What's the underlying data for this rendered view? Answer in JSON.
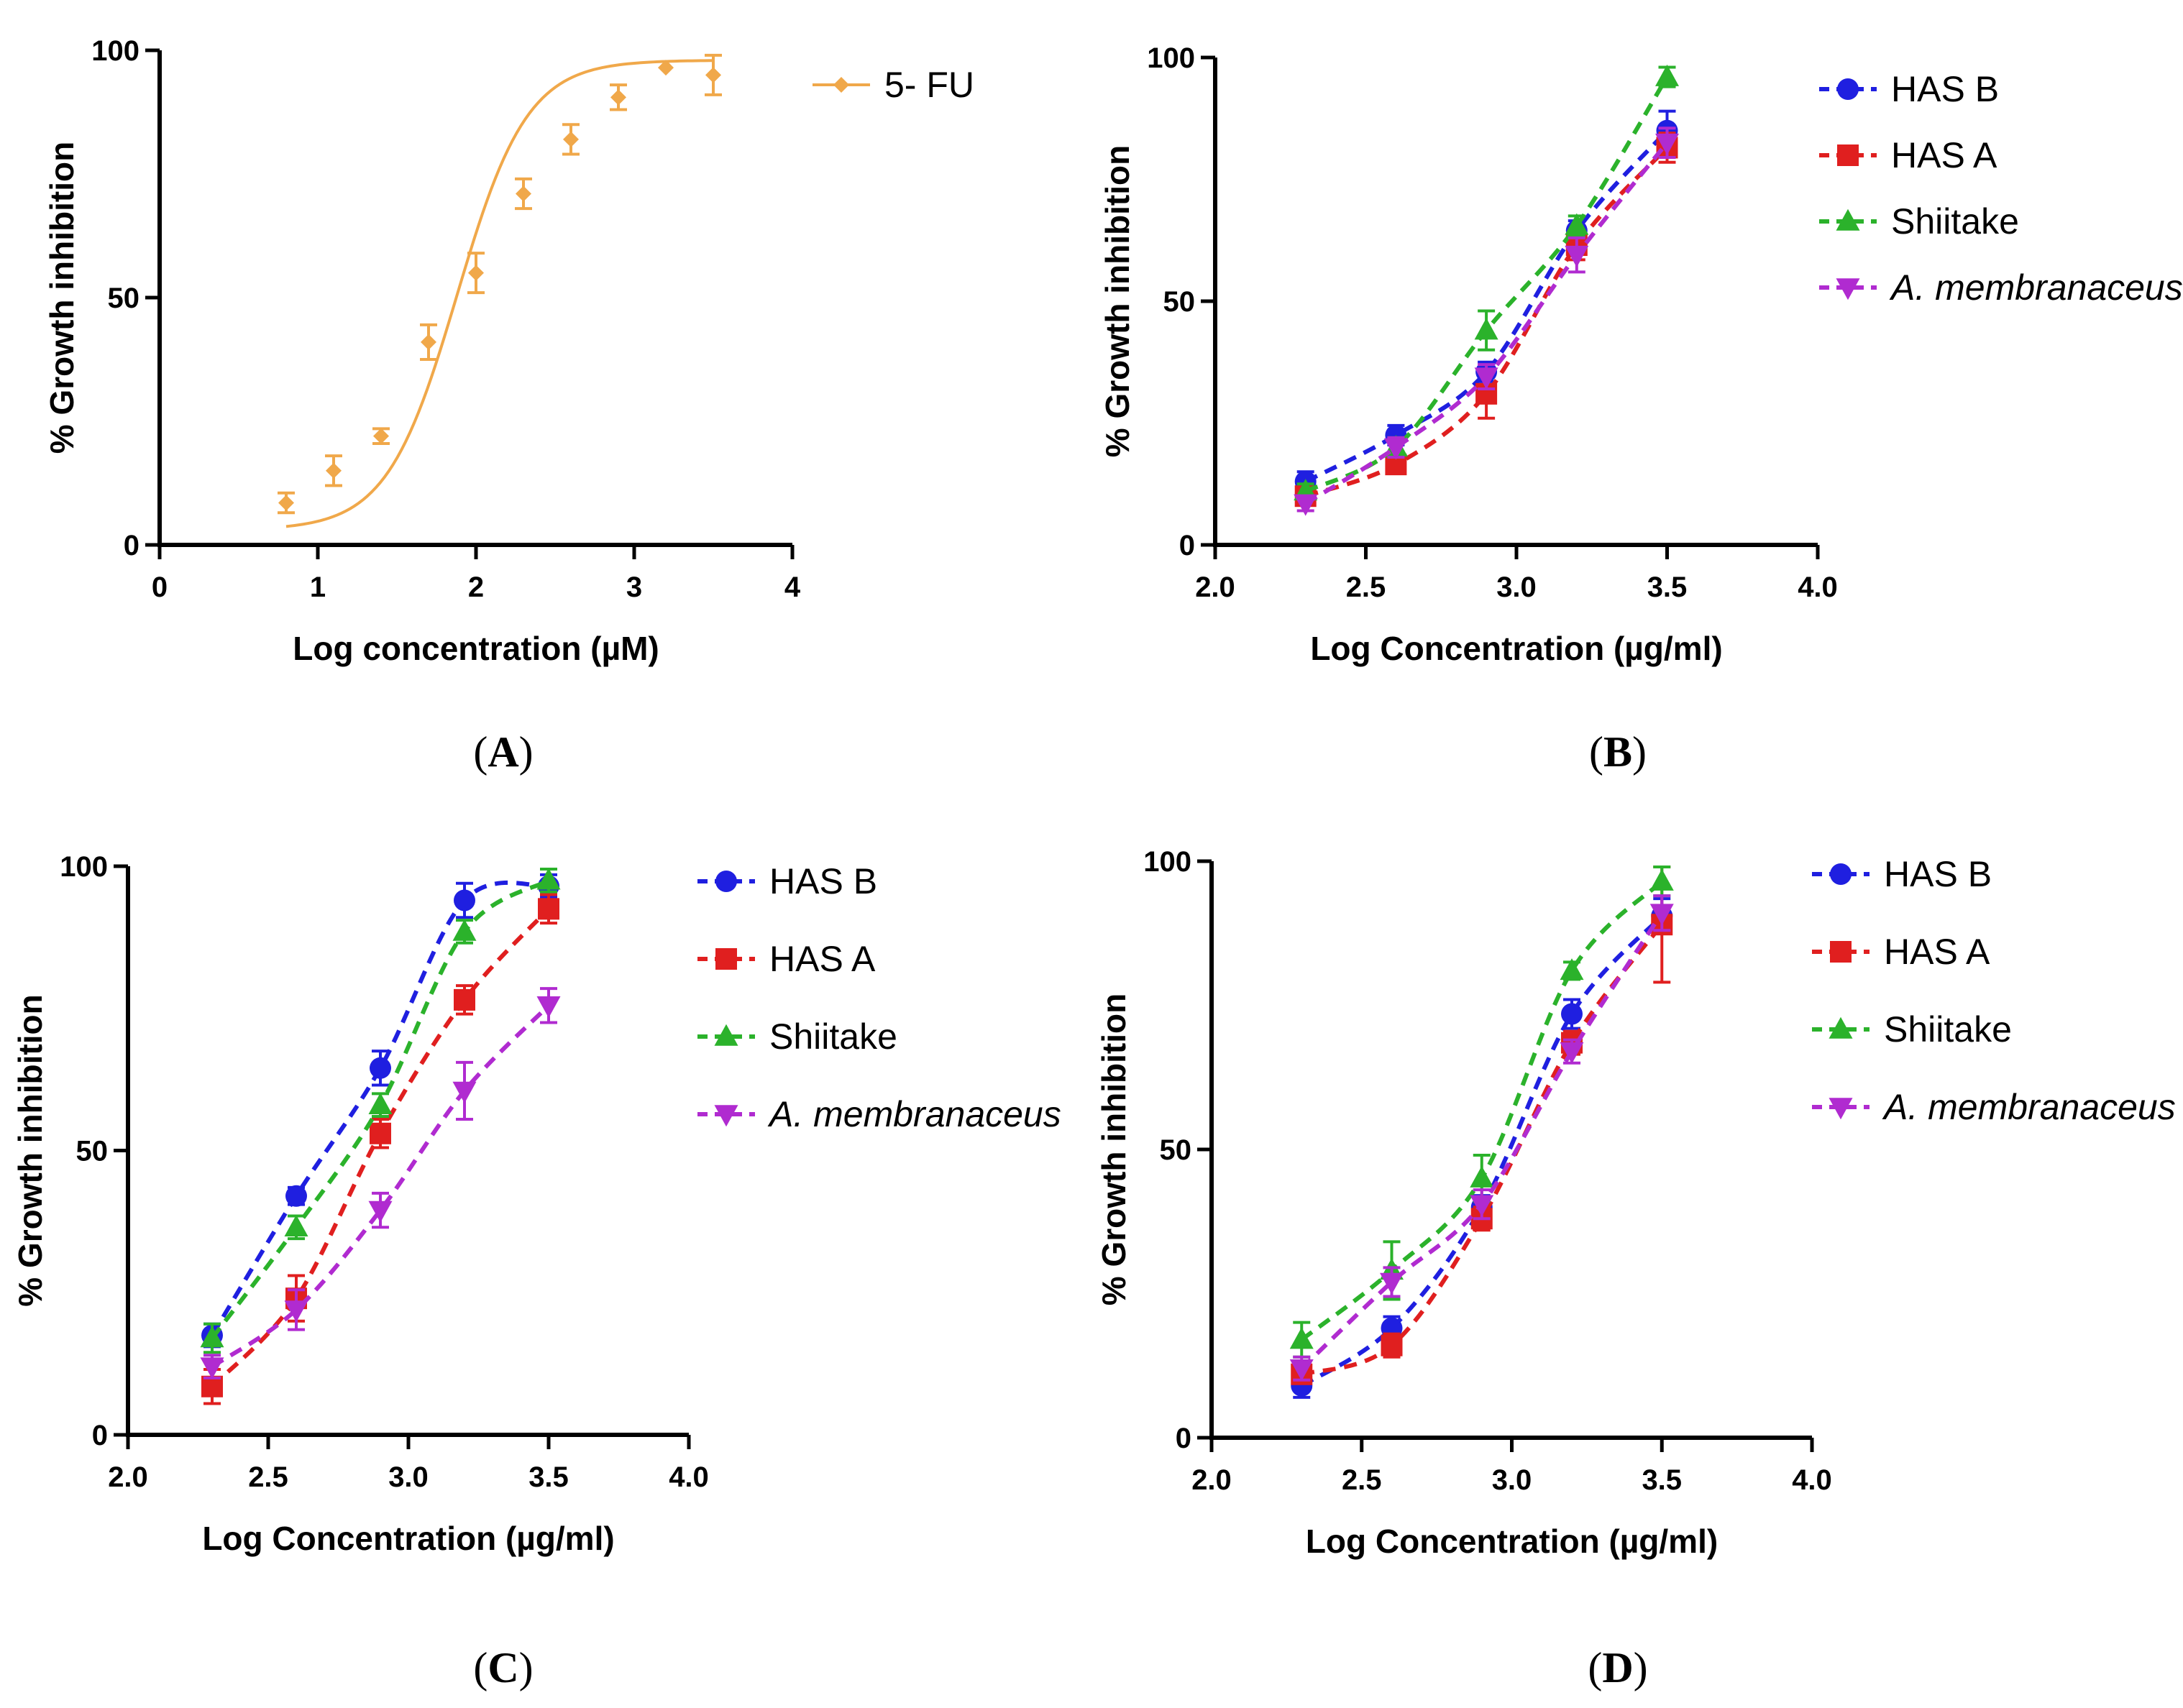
{
  "chart_data": [
    {
      "id": "A",
      "type": "line",
      "panel_label": "A",
      "xlabel": "Log concentration (µM)",
      "ylabel": "% Growth inhibition",
      "xlim": [
        0,
        4
      ],
      "ylim": [
        0,
        100
      ],
      "xticks": [
        0,
        1,
        2,
        3,
        4
      ],
      "xtick_labels": [
        "0",
        "1",
        "2",
        "3",
        "4"
      ],
      "yticks": [
        0,
        50,
        100
      ],
      "ytick_labels": [
        "0",
        "50",
        "100"
      ],
      "legend_position": "top-right",
      "fit": "sigmoid",
      "series": [
        {
          "name": "5- FU",
          "color": "#F0A84A",
          "marker": "diamond",
          "x": [
            0.8,
            1.1,
            1.4,
            1.7,
            2.0,
            2.3,
            2.6,
            2.9,
            3.2,
            3.5
          ],
          "values": [
            8.5,
            15,
            22,
            41,
            55,
            71,
            82,
            90.5,
            96.5,
            95
          ],
          "errors": [
            2,
            3,
            1.5,
            3.5,
            4,
            3,
            3,
            2.5,
            0,
            4
          ],
          "curve": {
            "bottom": 3,
            "top": 98,
            "logEC50": 1.88,
            "hill": 0.85
          }
        }
      ]
    },
    {
      "id": "B",
      "type": "line",
      "panel_label": "B",
      "xlabel": "Log Concentration (µg/ml)",
      "ylabel": "% Growth inhibition",
      "xlim": [
        2.0,
        4.0
      ],
      "ylim": [
        0,
        100
      ],
      "xticks": [
        2.0,
        2.5,
        3.0,
        3.5,
        4.0
      ],
      "xtick_labels": [
        "2.0",
        "2.5",
        "3.0",
        "3.5",
        "4.0"
      ],
      "yticks": [
        0,
        50,
        100
      ],
      "ytick_labels": [
        "0",
        "50",
        "100"
      ],
      "legend_position": "top-right",
      "x": [
        2.3,
        2.6,
        2.9,
        3.2,
        3.5
      ],
      "series": [
        {
          "name": "HAS B",
          "color": "#1F1FE0",
          "marker": "circle",
          "values": [
            13,
            22.5,
            35.5,
            64.5,
            85
          ],
          "errors": [
            2,
            2,
            2,
            2,
            4
          ]
        },
        {
          "name": "HAS A",
          "color": "#E01F1F",
          "marker": "square",
          "values": [
            10,
            16.5,
            31,
            61.5,
            81.5
          ],
          "errors": [
            1.5,
            1.5,
            5,
            3,
            3
          ]
        },
        {
          "name": "Shiitake",
          "color": "#2BB22B",
          "marker": "triangle-up",
          "values": [
            11,
            20,
            44,
            65.5,
            96
          ],
          "errors": [
            1.5,
            2,
            4,
            2,
            2
          ]
        },
        {
          "name": "A. membranaceus",
          "italic": true,
          "color": "#B02BD0",
          "marker": "triangle-down",
          "values": [
            8.5,
            20,
            34.5,
            59.5,
            82.5
          ],
          "errors": [
            1.5,
            2,
            2.5,
            3.5,
            3
          ]
        }
      ]
    },
    {
      "id": "C",
      "type": "line",
      "panel_label": "C",
      "xlabel": "Log Concentration (µg/ml)",
      "ylabel": "% Growth inhibition",
      "xlim": [
        2.0,
        4.0
      ],
      "ylim": [
        0,
        100
      ],
      "xticks": [
        2.0,
        2.5,
        3.0,
        3.5,
        4.0
      ],
      "xtick_labels": [
        "2.0",
        "2.5",
        "3.0",
        "3.5",
        "4.0"
      ],
      "yticks": [
        0,
        50,
        100
      ],
      "ytick_labels": [
        "0",
        "50",
        "100"
      ],
      "legend_position": "top-right",
      "x": [
        2.3,
        2.6,
        2.9,
        3.2,
        3.5
      ],
      "series": [
        {
          "name": "HAS B",
          "color": "#1F1FE0",
          "marker": "circle",
          "values": [
            17.5,
            42,
            64.5,
            94,
            96.5
          ],
          "errors": [
            2,
            1.5,
            3,
            3,
            2
          ]
        },
        {
          "name": "HAS A",
          "color": "#E01F1F",
          "marker": "square",
          "values": [
            8.5,
            24,
            53,
            76.5,
            92.5
          ],
          "errors": [
            3,
            4,
            2.5,
            2.5,
            2.5
          ]
        },
        {
          "name": "Shiitake",
          "color": "#2BB22B",
          "marker": "triangle-up",
          "values": [
            17,
            36.5,
            58,
            88.5,
            97.5
          ],
          "errors": [
            2.5,
            2,
            2,
            2,
            2
          ]
        },
        {
          "name": "A. membranaceus",
          "italic": true,
          "color": "#B02BD0",
          "marker": "triangle-down",
          "values": [
            12,
            22,
            39.5,
            60.5,
            75.5
          ],
          "errors": [
            2,
            3.5,
            3,
            5,
            3
          ]
        }
      ]
    },
    {
      "id": "D",
      "type": "line",
      "panel_label": "D",
      "xlabel": "Log Concentration (µg/ml)",
      "ylabel": "% Growth inhibition",
      "xlim": [
        2.0,
        4.0
      ],
      "ylim": [
        0,
        100
      ],
      "xticks": [
        2.0,
        2.5,
        3.0,
        3.5,
        4.0
      ],
      "xtick_labels": [
        "2.0",
        "2.5",
        "3.0",
        "3.5",
        "4.0"
      ],
      "yticks": [
        0,
        50,
        100
      ],
      "ytick_labels": [
        "0",
        "50",
        "100"
      ],
      "legend_position": "top-right",
      "x": [
        2.3,
        2.6,
        2.9,
        3.2,
        3.5
      ],
      "series": [
        {
          "name": "HAS B",
          "color": "#1F1FE0",
          "marker": "circle",
          "values": [
            9,
            19,
            40,
            73.5,
            90.5
          ],
          "errors": [
            2,
            2,
            2,
            2.5,
            3
          ]
        },
        {
          "name": "HAS A",
          "color": "#E01F1F",
          "marker": "square",
          "values": [
            11,
            16,
            38,
            68.5,
            89
          ],
          "errors": [
            1.5,
            2,
            2,
            2,
            10
          ]
        },
        {
          "name": "Shiitake",
          "color": "#2BB22B",
          "marker": "triangle-up",
          "values": [
            17,
            29,
            45,
            81,
            96.5
          ],
          "errors": [
            3,
            5,
            4,
            1.5,
            2.5
          ]
        },
        {
          "name": "A. membranaceus",
          "italic": true,
          "color": "#B02BD0",
          "marker": "triangle-down",
          "values": [
            12,
            27,
            40.5,
            67,
            91
          ],
          "errors": [
            2,
            2.5,
            2.5,
            2,
            3
          ]
        }
      ]
    }
  ]
}
